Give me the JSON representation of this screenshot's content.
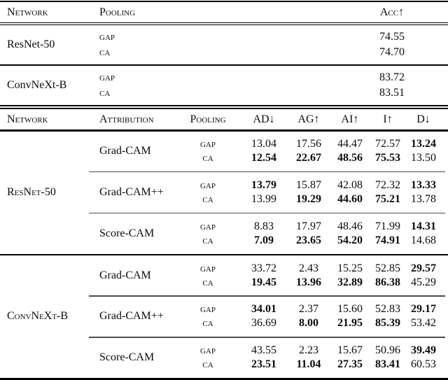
{
  "accuracy_table": {
    "headers": {
      "network": "Network",
      "pooling": "Pooling",
      "acc": "Acc↑"
    },
    "groups": [
      {
        "network": "ResNet-50",
        "rows": [
          {
            "pooling": "gap",
            "acc": "74.55"
          },
          {
            "pooling": "ca",
            "acc": "74.70"
          }
        ]
      },
      {
        "network": "ConvNeXt-B",
        "rows": [
          {
            "pooling": "gap",
            "acc": "83.72"
          },
          {
            "pooling": "ca",
            "acc": "83.51"
          }
        ]
      }
    ]
  },
  "metrics_table": {
    "headers": {
      "network": "Network",
      "attribution": "Attribution",
      "pooling": "Pooling",
      "metrics": [
        "AD↓",
        "AG↑",
        "AI↑",
        "I↑",
        "D↓"
      ]
    },
    "groups": [
      {
        "network": "ResNet-50",
        "blocks": [
          {
            "attribution": "Grad-CAM",
            "rows": [
              {
                "pooling": "gap",
                "values": [
                  "13.04",
                  "17.56",
                  "44.47",
                  "72.57",
                  "13.24"
                ],
                "bold": [
                  false,
                  false,
                  false,
                  false,
                  true
                ]
              },
              {
                "pooling": "ca",
                "values": [
                  "12.54",
                  "22.67",
                  "48.56",
                  "75.53",
                  "13.50"
                ],
                "bold": [
                  true,
                  true,
                  true,
                  true,
                  false
                ]
              }
            ]
          },
          {
            "attribution": "Grad-CAM++",
            "rows": [
              {
                "pooling": "gap",
                "values": [
                  "13.79",
                  "15.87",
                  "42.08",
                  "72.32",
                  "13.33"
                ],
                "bold": [
                  true,
                  false,
                  false,
                  false,
                  true
                ]
              },
              {
                "pooling": "ca",
                "values": [
                  "13.99",
                  "19.29",
                  "44.60",
                  "75.21",
                  "13.78"
                ],
                "bold": [
                  false,
                  true,
                  true,
                  true,
                  false
                ]
              }
            ]
          },
          {
            "attribution": "Score-CAM",
            "rows": [
              {
                "pooling": "gap",
                "values": [
                  "8.83",
                  "17.97",
                  "48.46",
                  "71.99",
                  "14.31"
                ],
                "bold": [
                  false,
                  false,
                  false,
                  false,
                  true
                ]
              },
              {
                "pooling": "ca",
                "values": [
                  "7.09",
                  "23.65",
                  "54.20",
                  "74.91",
                  "14.68"
                ],
                "bold": [
                  true,
                  true,
                  true,
                  true,
                  false
                ]
              }
            ]
          }
        ]
      },
      {
        "network": "ConvNeXt-B",
        "blocks": [
          {
            "attribution": "Grad-CAM",
            "rows": [
              {
                "pooling": "gap",
                "values": [
                  "33.72",
                  "2.43",
                  "15.25",
                  "52.85",
                  "29.57"
                ],
                "bold": [
                  false,
                  false,
                  false,
                  false,
                  true
                ]
              },
              {
                "pooling": "ca",
                "values": [
                  "19.45",
                  "13.96",
                  "32.89",
                  "86.38",
                  "45.29"
                ],
                "bold": [
                  true,
                  true,
                  true,
                  true,
                  false
                ]
              }
            ]
          },
          {
            "attribution": "Grad-CAM++",
            "rows": [
              {
                "pooling": "gap",
                "values": [
                  "34.01",
                  "2.37",
                  "15.60",
                  "52.83",
                  "29.17"
                ],
                "bold": [
                  true,
                  false,
                  false,
                  false,
                  true
                ]
              },
              {
                "pooling": "ca",
                "values": [
                  "36.69",
                  "8.00",
                  "21.95",
                  "85.39",
                  "53.42"
                ],
                "bold": [
                  false,
                  true,
                  true,
                  true,
                  false
                ]
              }
            ]
          },
          {
            "attribution": "Score-CAM",
            "rows": [
              {
                "pooling": "gap",
                "values": [
                  "43.55",
                  "2.23",
                  "15.67",
                  "50.96",
                  "39.49"
                ],
                "bold": [
                  false,
                  false,
                  false,
                  false,
                  true
                ]
              },
              {
                "pooling": "ca",
                "values": [
                  "23.51",
                  "11.04",
                  "27.35",
                  "83.41",
                  "60.53"
                ],
                "bold": [
                  true,
                  true,
                  true,
                  true,
                  false
                ]
              }
            ]
          }
        ]
      }
    ]
  },
  "colors": {
    "background": "#ffffff",
    "text": "#0b0b0b",
    "rule": "#000000",
    "cmidrule": "#4d4d4d"
  }
}
